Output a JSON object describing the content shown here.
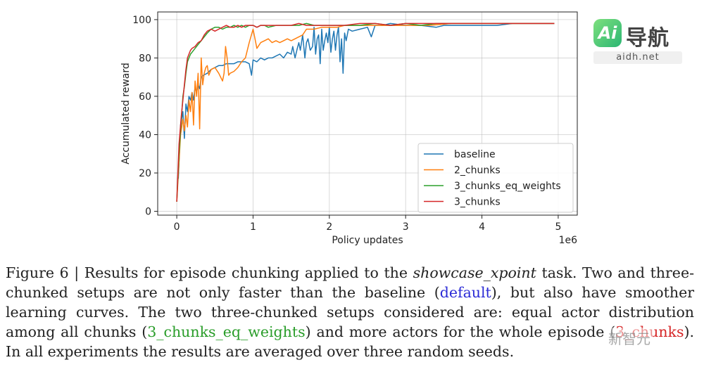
{
  "chart_data": {
    "type": "line",
    "xlabel": "Policy updates",
    "ylabel": "Accumulated reward",
    "x_offset_label": "1e6",
    "xlim": [
      -0.25,
      5.25
    ],
    "ylim": [
      -2,
      104
    ],
    "x_ticks": [
      0,
      1,
      2,
      3,
      4,
      5
    ],
    "x_tick_labels": [
      "0",
      "1",
      "2",
      "3",
      "4",
      "5"
    ],
    "y_ticks": [
      0,
      20,
      40,
      60,
      80,
      100
    ],
    "y_tick_labels": [
      "0",
      "20",
      "40",
      "60",
      "80",
      "100"
    ],
    "grid": true,
    "legend_placement": "lower-right",
    "series": [
      {
        "name": "baseline",
        "color": "#1f77b4",
        "x": [
          0.02,
          0.05,
          0.08,
          0.1,
          0.12,
          0.14,
          0.16,
          0.18,
          0.2,
          0.22,
          0.24,
          0.26,
          0.28,
          0.3,
          0.32,
          0.35,
          0.4,
          0.45,
          0.5,
          0.55,
          0.6,
          0.65,
          0.7,
          0.75,
          0.8,
          0.85,
          0.9,
          0.95,
          0.98,
          1.0,
          1.05,
          1.1,
          1.15,
          1.2,
          1.25,
          1.3,
          1.35,
          1.4,
          1.45,
          1.5,
          1.52,
          1.55,
          1.58,
          1.6,
          1.62,
          1.65,
          1.68,
          1.7,
          1.72,
          1.75,
          1.78,
          1.8,
          1.82,
          1.84,
          1.86,
          1.88,
          1.9,
          1.92,
          1.94,
          1.96,
          1.98,
          2.0,
          2.02,
          2.04,
          2.06,
          2.08,
          2.1,
          2.12,
          2.14,
          2.16,
          2.18,
          2.2,
          2.22,
          2.25,
          2.3,
          2.4,
          2.5,
          2.55,
          2.6,
          2.7,
          2.8,
          3.0,
          3.2,
          3.4,
          3.5,
          3.6,
          3.8,
          4.0,
          4.2,
          4.4,
          4.6,
          4.8,
          4.95
        ],
        "values": [
          17,
          45,
          52,
          38,
          56,
          52,
          60,
          58,
          62,
          58,
          65,
          62,
          66,
          64,
          70,
          71,
          72,
          74,
          75,
          76,
          76,
          77,
          77,
          77,
          78,
          78,
          78,
          77,
          71,
          79,
          78,
          80,
          79,
          80,
          80,
          81,
          82,
          80,
          83,
          82,
          86,
          80,
          85,
          88,
          84,
          92,
          80,
          88,
          90,
          84,
          86,
          96,
          82,
          90,
          92,
          77,
          95,
          84,
          89,
          93,
          88,
          96,
          83,
          90,
          94,
          84,
          92,
          96,
          78,
          90,
          72,
          93,
          89,
          95,
          94,
          95,
          96,
          91,
          97,
          97,
          98,
          97,
          97,
          96,
          97,
          97,
          97,
          97,
          97,
          98,
          98,
          98,
          98
        ]
      },
      {
        "name": "2_chunks",
        "color": "#ff7f0e",
        "x": [
          0.0,
          0.05,
          0.08,
          0.1,
          0.12,
          0.14,
          0.16,
          0.18,
          0.2,
          0.22,
          0.24,
          0.26,
          0.28,
          0.3,
          0.32,
          0.34,
          0.36,
          0.38,
          0.4,
          0.42,
          0.45,
          0.5,
          0.55,
          0.6,
          0.62,
          0.64,
          0.66,
          0.68,
          0.7,
          0.75,
          0.8,
          0.85,
          0.9,
          0.95,
          1.0,
          1.05,
          1.1,
          1.15,
          1.2,
          1.25,
          1.3,
          1.35,
          1.4,
          1.45,
          1.5,
          1.55,
          1.6,
          1.65,
          1.7,
          1.8,
          1.9,
          2.0,
          2.1,
          2.2,
          2.3,
          2.5,
          2.7,
          3.0,
          3.3,
          3.6,
          4.0,
          4.4,
          4.8,
          4.95
        ],
        "values": [
          5,
          40,
          48,
          42,
          50,
          44,
          58,
          52,
          62,
          45,
          68,
          60,
          72,
          43,
          80,
          66,
          72,
          75,
          76,
          71,
          74,
          75,
          72,
          68,
          72,
          86,
          80,
          71,
          72,
          73,
          75,
          78,
          80,
          88,
          95,
          85,
          88,
          89,
          90,
          88,
          89,
          88,
          89,
          90,
          89,
          90,
          91,
          92,
          95,
          95,
          96,
          96,
          96,
          97,
          97,
          97,
          97,
          97,
          97,
          98,
          98,
          98,
          98,
          98
        ]
      },
      {
        "name": "3_chunks_eq_weights",
        "color": "#2ca02c",
        "x": [
          0.0,
          0.03,
          0.06,
          0.08,
          0.1,
          0.12,
          0.14,
          0.16,
          0.18,
          0.2,
          0.24,
          0.28,
          0.32,
          0.36,
          0.4,
          0.45,
          0.5,
          0.55,
          0.6,
          0.65,
          0.7,
          0.75,
          0.8,
          0.85,
          0.9,
          0.95,
          1.0,
          1.05,
          1.1,
          1.15,
          1.2,
          1.3,
          1.4,
          1.5,
          1.6,
          1.7,
          1.8,
          1.9,
          2.0,
          2.2,
          2.4,
          2.6,
          2.8,
          3.0,
          3.2,
          3.4,
          3.6,
          3.8,
          4.0,
          4.2,
          4.4,
          4.6,
          4.8,
          4.95
        ],
        "values": [
          5,
          30,
          48,
          60,
          65,
          72,
          78,
          80,
          82,
          83,
          85,
          87,
          89,
          91,
          93,
          95,
          96,
          96,
          95,
          96,
          96,
          97,
          96,
          97,
          96,
          97,
          97,
          96,
          97,
          97,
          96,
          97,
          97,
          97,
          97,
          98,
          97,
          97,
          97,
          97,
          97,
          98,
          97,
          98,
          97,
          98,
          98,
          98,
          98,
          98,
          98,
          98,
          98,
          98
        ]
      },
      {
        "name": "3_chunks",
        "color": "#d62728",
        "x": [
          0.0,
          0.03,
          0.06,
          0.08,
          0.1,
          0.12,
          0.14,
          0.16,
          0.18,
          0.2,
          0.24,
          0.28,
          0.32,
          0.36,
          0.4,
          0.45,
          0.5,
          0.55,
          0.6,
          0.65,
          0.7,
          0.75,
          0.8,
          0.85,
          0.9,
          0.95,
          1.0,
          1.05,
          1.1,
          1.15,
          1.2,
          1.3,
          1.4,
          1.5,
          1.6,
          1.7,
          1.8,
          1.9,
          2.0,
          2.2,
          2.4,
          2.6,
          2.8,
          3.0,
          3.2,
          3.4,
          3.6,
          3.8,
          4.0,
          4.2,
          4.4,
          4.6,
          4.8,
          4.95
        ],
        "values": [
          5,
          35,
          50,
          58,
          66,
          74,
          80,
          82,
          84,
          85,
          86,
          88,
          89,
          92,
          94,
          95,
          94,
          95,
          96,
          97,
          96,
          96,
          97,
          96,
          97,
          97,
          97,
          96,
          97,
          97,
          97,
          97,
          97,
          97,
          98,
          97,
          97,
          97,
          97,
          97,
          98,
          98,
          97,
          98,
          98,
          98,
          98,
          98,
          98,
          98,
          98,
          98,
          98,
          98
        ]
      }
    ]
  },
  "caption": {
    "part1": "Figure 6 | Results for episode chunking applied to the ",
    "italic_task": "showcase_xpoint",
    "part2": " task.  Two and three-chunked setups are not only faster than the baseline (",
    "default_label": "default",
    "part3": "), but also have smoother learning curves. The two three-chunked setups considered are: equal actor distribution among all chunks (",
    "eq_label": "3_chunks_eq_weights",
    "part4": ") and more actors for the whole episode (",
    "three_label": "3_chunks",
    "part5": "). In all experiments the results are averaged over three random seeds."
  },
  "watermark": {
    "badge_text": "Ai",
    "name": "导航",
    "url": "aidh.net",
    "corner_text": "新智元"
  }
}
